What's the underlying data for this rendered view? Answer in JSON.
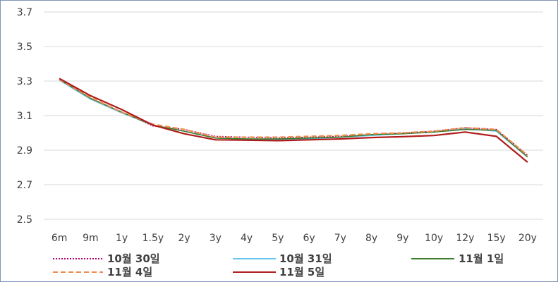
{
  "chart_data": {
    "type": "line",
    "categories": [
      "6m",
      "9m",
      "1y",
      "1.5y",
      "2y",
      "3y",
      "4y",
      "5y",
      "6y",
      "7y",
      "8y",
      "9y",
      "10y",
      "12y",
      "15y",
      "20y"
    ],
    "ylim": [
      2.5,
      3.7
    ],
    "yticks": [
      "2.5",
      "2.7",
      "2.9",
      "3.1",
      "3.3",
      "3.5",
      "3.7"
    ],
    "grid": true,
    "legend_position": "bottom",
    "series": [
      {
        "name": "10월 30일",
        "color": "#b5006e",
        "style": "dotted",
        "values": [
          3.31,
          3.2,
          3.12,
          3.04,
          3.02,
          2.98,
          2.975,
          2.97,
          2.975,
          2.98,
          2.99,
          3.0,
          3.01,
          3.03,
          3.02,
          2.87
        ]
      },
      {
        "name": "10월 31일",
        "color": "#66c6ee",
        "style": "solid",
        "values": [
          3.305,
          3.195,
          3.115,
          3.045,
          3.01,
          2.97,
          2.965,
          2.96,
          2.965,
          2.975,
          2.985,
          2.995,
          3.005,
          3.025,
          3.01,
          2.86
        ]
      },
      {
        "name": "11월 1일",
        "color": "#3a7d2c",
        "style": "solid",
        "values": [
          3.31,
          3.2,
          3.12,
          3.045,
          3.01,
          2.97,
          2.965,
          2.965,
          2.97,
          2.975,
          2.99,
          2.995,
          3.005,
          3.02,
          3.015,
          2.86
        ]
      },
      {
        "name": "11월 4일",
        "color": "#f08a4b",
        "style": "dashed",
        "values": [
          3.31,
          3.205,
          3.12,
          3.05,
          3.02,
          2.975,
          2.975,
          2.975,
          2.98,
          2.985,
          2.995,
          3.0,
          3.01,
          3.03,
          3.02,
          2.87
        ]
      },
      {
        "name": "11월 5일",
        "color": "#b01c1c",
        "style": "solid",
        "values": [
          3.315,
          3.215,
          3.135,
          3.045,
          2.995,
          2.96,
          2.958,
          2.955,
          2.96,
          2.965,
          2.973,
          2.978,
          2.985,
          3.005,
          2.98,
          2.83
        ]
      }
    ]
  }
}
